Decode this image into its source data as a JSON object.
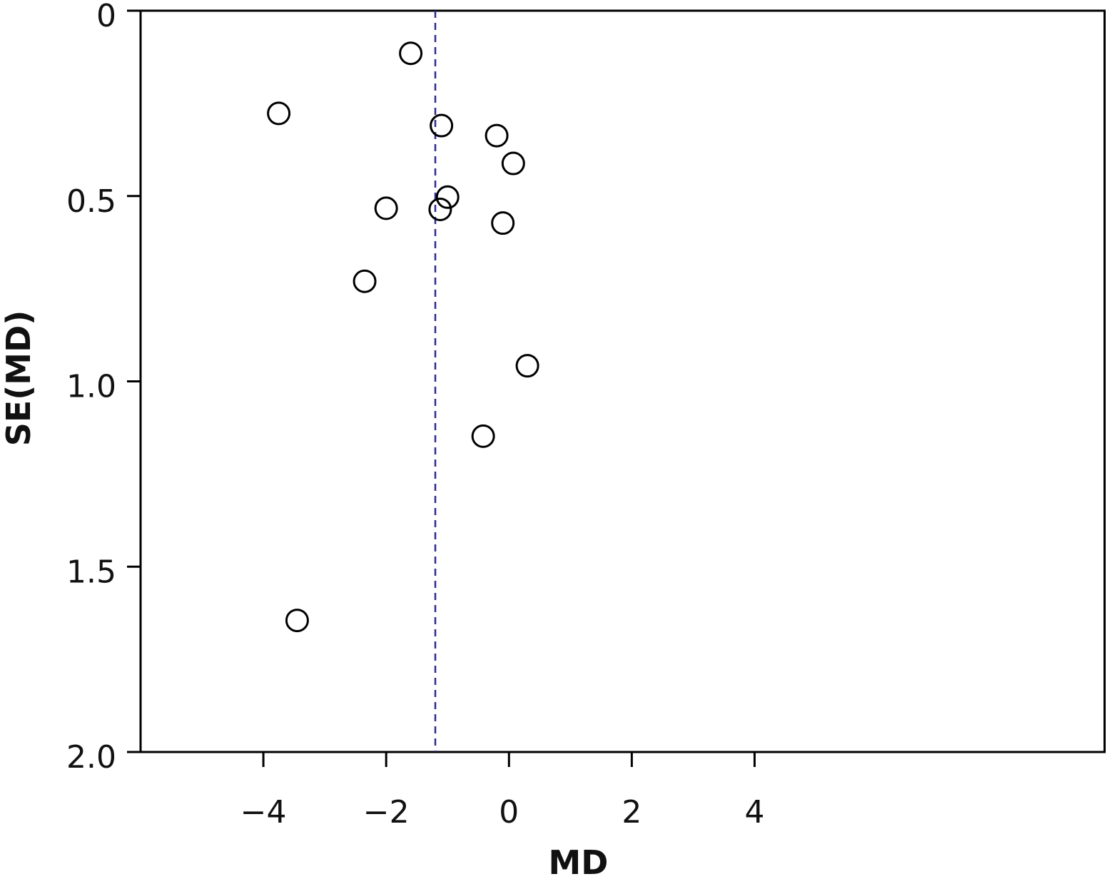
{
  "chart_data": {
    "type": "scatter",
    "title": "",
    "xlabel": "MD",
    "ylabel": "SE(MD)",
    "xlim": [
      -6,
      9.7
    ],
    "ylim": [
      0,
      2.0
    ],
    "y_inverted": true,
    "xticks": [
      -4,
      -2,
      0,
      2,
      4
    ],
    "xtick_labels": [
      "−4",
      "−2",
      "0",
      "2",
      "4"
    ],
    "yticks": [
      0,
      0.5,
      1.0,
      1.5,
      2.0
    ],
    "ytick_labels": [
      "0",
      "0.5",
      "1.0",
      "1.5",
      "2.0"
    ],
    "reference_line": {
      "x": -1.2,
      "style": "dashed",
      "color": "#2a2a9a"
    },
    "marker": {
      "shape": "open-circle",
      "color": "#000000"
    },
    "points": [
      {
        "x": -1.6,
        "y": 0.115
      },
      {
        "x": -3.75,
        "y": 0.277
      },
      {
        "x": -1.1,
        "y": 0.31
      },
      {
        "x": -0.2,
        "y": 0.337
      },
      {
        "x": 0.07,
        "y": 0.412
      },
      {
        "x": -1.0,
        "y": 0.503
      },
      {
        "x": -2.0,
        "y": 0.533
      },
      {
        "x": -1.12,
        "y": 0.536
      },
      {
        "x": -0.1,
        "y": 0.573
      },
      {
        "x": -2.35,
        "y": 0.73
      },
      {
        "x": 0.3,
        "y": 0.958
      },
      {
        "x": -0.42,
        "y": 1.148
      },
      {
        "x": -3.45,
        "y": 1.645
      }
    ],
    "grid": false,
    "legend": "none"
  }
}
